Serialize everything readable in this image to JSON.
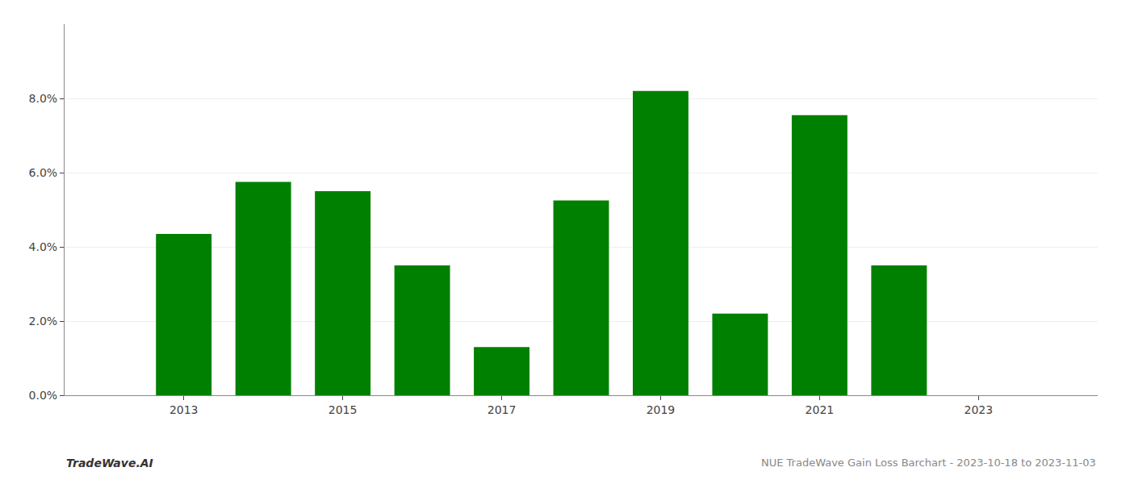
{
  "chart_data": {
    "type": "bar",
    "title": "NUE TradeWave Gain Loss Barchart - 2023-10-18 to 2023-11-03",
    "annotations": [
      "TradeWave.AI"
    ],
    "x": [
      2013,
      2014,
      2015,
      2016,
      2017,
      2018,
      2019,
      2020,
      2021,
      2022
    ],
    "values": [
      0.0435,
      0.0575,
      0.055,
      0.035,
      0.013,
      0.0525,
      0.082,
      0.022,
      0.0755,
      0.035
    ],
    "color": "#008000",
    "xlim": [
      2011.5,
      2024.5
    ],
    "xticks": [
      2013,
      2015,
      2017,
      2019,
      2021,
      2023
    ],
    "ylim": [
      0,
      0.1
    ],
    "yticks": [
      {
        "value": 0.0,
        "label": "0.0%"
      },
      {
        "value": 0.02,
        "label": "2.0%"
      },
      {
        "value": 0.04,
        "label": "4.0%"
      },
      {
        "value": 0.06,
        "label": "6.0%"
      },
      {
        "value": 0.08,
        "label": "8.0%"
      }
    ],
    "grid": true
  }
}
